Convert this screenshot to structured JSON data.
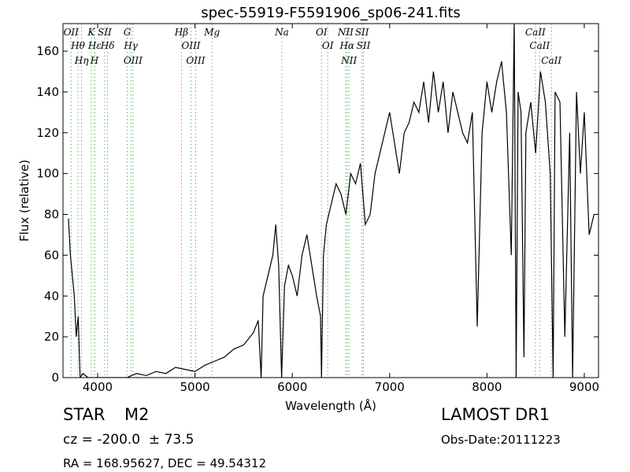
{
  "chart_data": {
    "type": "line",
    "title": "spec-55919-F5591906_sp06-241.fits",
    "x_label": "Wavelength (Å)",
    "y_label": "Flux (relative)",
    "xlim": [
      3644,
      9146
    ],
    "ylim": [
      0,
      173.5
    ],
    "xticks": [
      4000,
      5000,
      6000,
      7000,
      8000,
      9000
    ],
    "yticks": [
      0,
      20,
      40,
      60,
      80,
      100,
      120,
      140,
      160
    ],
    "series": [
      {
        "name": "flux",
        "color": "#000000",
        "x": [
          3700,
          3720,
          3740,
          3760,
          3780,
          3800,
          3820,
          3850,
          3900,
          4000,
          4100,
          4200,
          4300,
          4400,
          4500,
          4600,
          4700,
          4800,
          4900,
          5000,
          5100,
          5200,
          5300,
          5400,
          5500,
          5600,
          5650,
          5680,
          5700,
          5750,
          5800,
          5830,
          5860,
          5890,
          5920,
          5960,
          6000,
          6050,
          6100,
          6150,
          6200,
          6250,
          6290,
          6300,
          6320,
          6350,
          6400,
          6450,
          6500,
          6550,
          6600,
          6650,
          6700,
          6750,
          6800,
          6850,
          6900,
          6950,
          7000,
          7050,
          7100,
          7150,
          7200,
          7250,
          7300,
          7350,
          7400,
          7450,
          7500,
          7550,
          7600,
          7650,
          7700,
          7750,
          7800,
          7850,
          7900,
          7950,
          8000,
          8050,
          8100,
          8150,
          8200,
          8250,
          8280,
          8300,
          8320,
          8350,
          8380,
          8400,
          8450,
          8500,
          8550,
          8600,
          8650,
          8680,
          8700,
          8750,
          8800,
          8850,
          8880,
          8920,
          8960,
          9000,
          9050,
          9100
        ],
        "values": [
          78,
          60,
          50,
          40,
          20,
          30,
          0,
          2,
          0,
          0,
          0,
          0,
          0,
          2,
          1,
          3,
          2,
          5,
          4,
          3,
          6,
          8,
          10,
          14,
          16,
          22,
          28,
          0,
          40,
          50,
          60,
          75,
          55,
          0,
          45,
          55,
          50,
          40,
          60,
          70,
          55,
          40,
          30,
          0,
          60,
          75,
          85,
          95,
          90,
          80,
          100,
          95,
          105,
          75,
          80,
          100,
          110,
          120,
          130,
          115,
          100,
          120,
          125,
          135,
          130,
          145,
          125,
          150,
          130,
          145,
          120,
          140,
          130,
          120,
          115,
          130,
          25,
          120,
          145,
          130,
          145,
          155,
          130,
          60,
          175,
          0,
          140,
          130,
          10,
          120,
          135,
          110,
          150,
          135,
          100,
          0,
          140,
          135,
          20,
          120,
          0,
          140,
          100,
          130,
          70,
          80
        ]
      }
    ],
    "line_marker_color": "#5cb85c",
    "spectral_lines": [
      {
        "label": "OII",
        "x": 3727
      },
      {
        "label": "Hθ",
        "x": 3798
      },
      {
        "label": "Hη",
        "x": 3835
      },
      {
        "label": "K",
        "x": 3934
      },
      {
        "label": "Hε",
        "x": 3970
      },
      {
        "label": "H",
        "x": 3968
      },
      {
        "label": "SII",
        "x": 4072
      },
      {
        "label": "Hδ",
        "x": 4102
      },
      {
        "label": "G",
        "x": 4304
      },
      {
        "label": "Hγ",
        "x": 4341
      },
      {
        "label": "OIII",
        "x": 4363
      },
      {
        "label": "Hβ",
        "x": 4861
      },
      {
        "label": "OIII",
        "x": 4959
      },
      {
        "label": "OIII",
        "x": 5007
      },
      {
        "label": "Mg",
        "x": 5175
      },
      {
        "label": "Na",
        "x": 5893
      },
      {
        "label": "OI",
        "x": 6300
      },
      {
        "label": "OI",
        "x": 6364
      },
      {
        "label": "NII",
        "x": 6548
      },
      {
        "label": "Hα",
        "x": 6563
      },
      {
        "label": "NII",
        "x": 6583
      },
      {
        "label": "SII",
        "x": 6716
      },
      {
        "label": "SII",
        "x": 6731
      },
      {
        "label": "CaII",
        "x": 8498
      },
      {
        "label": "CaII",
        "x": 8542
      },
      {
        "label": "CaII",
        "x": 8662
      }
    ]
  },
  "footer": {
    "object_class": "STAR",
    "subclass": "M2",
    "redshift": "cz = -200.0  ± 73.5",
    "coordinates": "RA = 168.95627, DEC = 49.54312",
    "survey": "LAMOST DR1",
    "obs_date": "Obs-Date:20111223"
  }
}
